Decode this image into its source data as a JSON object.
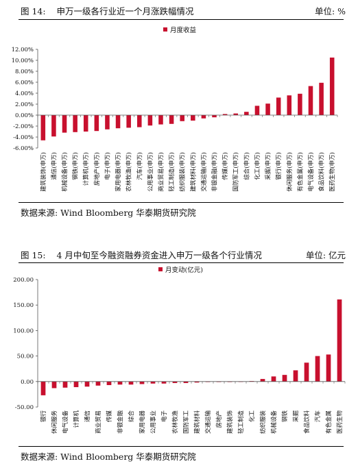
{
  "figures": [
    {
      "label": "图 14:",
      "title": "申万一级各行业近一个月涨跌幅情况",
      "unit": "单位: %",
      "source": "数据来源: Wind   Bloomberg  华泰期货研究院",
      "accent_color": "#c8102e"
    },
    {
      "label": "图 15:",
      "title": "4 月中旬至今融资融券资金进入申万一级各个行业情况",
      "unit": "单位: 亿元",
      "source": "数据来源: Wind   Bloomberg  华泰期货研究院",
      "accent_color": "#c8102e"
    }
  ],
  "chart_data": [
    {
      "type": "bar",
      "legend": "月度收益",
      "legend_position": "top-center",
      "ylim": [
        -6,
        12
      ],
      "ystep": 2,
      "ytick_suffix": "%",
      "ytick_decimals": 2,
      "grid": false,
      "categories": [
        "建筑装饰(申万)",
        "通信(申万)",
        "机械设备(申万)",
        "钢铁(申万)",
        "计算机(申万)",
        "房地产(申万)",
        "电子(申万)",
        "家用电器(申万)",
        "农林牧渔(申万)",
        "汽车(申万)",
        "公用事业(申万)",
        "商业贸易(申万)",
        "轻工制造(申万)",
        "纺织服装(申万)",
        "建筑材料(申万)",
        "交通运输(申万)",
        "非银金融(申万)",
        "传媒(申万)",
        "国防军工(申万)",
        "综合(申万)",
        "化工(申万)",
        "采掘(申万)",
        "银行(申万)",
        "休闲服务(申万)",
        "有色金属(申万)",
        "电气设备(申万)",
        "食品饮料(申万)",
        "医药生物(申万)"
      ],
      "values": [
        -4.6,
        -3.9,
        -3.2,
        -3.1,
        -3.0,
        -2.9,
        -2.6,
        -2.4,
        -2.3,
        -2.2,
        -1.9,
        -1.7,
        -1.6,
        -1.1,
        -1.0,
        -0.6,
        -0.4,
        0.2,
        0.3,
        0.6,
        1.7,
        2.1,
        3.2,
        3.6,
        3.9,
        5.3,
        5.9,
        10.5
      ]
    },
    {
      "type": "bar",
      "legend": "月变动(亿元)",
      "legend_position": "top-center",
      "ylim": [
        -50,
        200
      ],
      "ystep": 50,
      "ytick_suffix": "",
      "ytick_decimals": 2,
      "grid": false,
      "categories": [
        "银行",
        "休闲服务",
        "电气设备",
        "计算机",
        "通信",
        "商业贸易",
        "传媒",
        "非银金融",
        "综合",
        "家用电器",
        "公用事业",
        "电子",
        "农林牧渔",
        "国防军工",
        "建筑材料",
        "交通运输",
        "房地产",
        "建筑装饰",
        "轻工制造",
        "化工",
        "纺织服装",
        "机械设备",
        "钢铁",
        "采掘",
        "食品饮料",
        "汽车",
        "有色金属",
        "医药生物"
      ],
      "values": [
        -27,
        -13,
        -12,
        -11,
        -10,
        -8,
        -7,
        -6,
        -6,
        -5,
        -4,
        -4,
        -3,
        -3,
        -2,
        -1,
        -1,
        -1,
        0,
        1,
        5,
        10,
        13,
        22,
        37,
        50,
        53,
        161
      ]
    }
  ]
}
